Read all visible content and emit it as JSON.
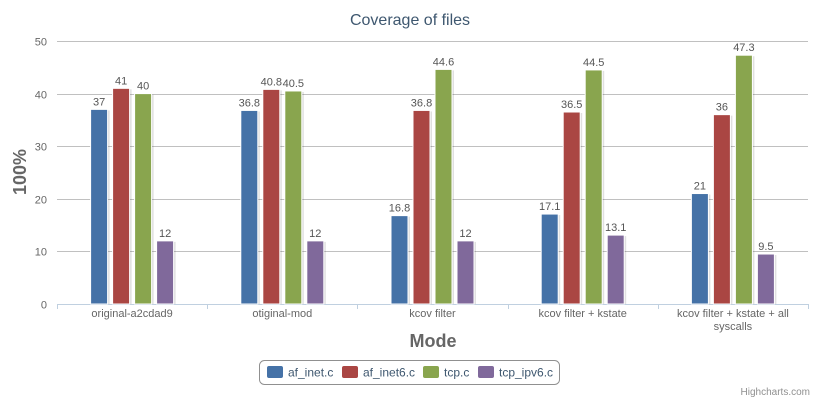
{
  "chart_data": {
    "type": "bar",
    "title": "Coverage of files",
    "xlabel": "Mode",
    "ylabel": "100%",
    "ylim": [
      0,
      50
    ],
    "yticks": [
      0,
      10,
      20,
      30,
      40,
      50
    ],
    "grid": true,
    "legend_position": "bottom-center",
    "categories": [
      "original-a2cdad9",
      "otiginal-mod",
      "kcov filter",
      "kcov filter + kstate",
      "kcov filter + kstate + all syscalls"
    ],
    "series": [
      {
        "name": "af_inet.c",
        "color": "#4572a7",
        "values": [
          37,
          36.8,
          16.8,
          17.1,
          21
        ]
      },
      {
        "name": "af_inet6.c",
        "color": "#aa4643",
        "values": [
          41,
          40.8,
          36.8,
          36.5,
          36
        ]
      },
      {
        "name": "tcp.c",
        "color": "#89a54e",
        "values": [
          40,
          40.5,
          44.6,
          44.5,
          47.3
        ]
      },
      {
        "name": "tcp_ipv6.c",
        "color": "#80699b",
        "values": [
          12,
          12,
          12,
          13.1,
          9.5
        ]
      }
    ],
    "credits": "Highcharts.com"
  }
}
